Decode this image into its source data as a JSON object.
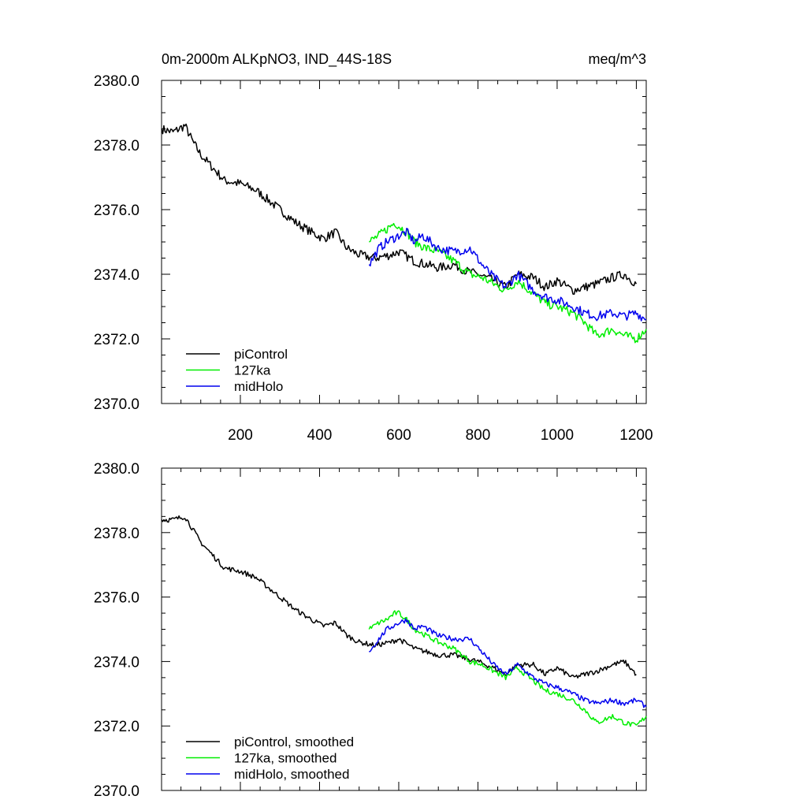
{
  "chart_data": [
    {
      "type": "line",
      "panel": "top",
      "title": "0m-2000m ALKpNO3, IND_44S-18S",
      "units": "meq/m^3",
      "xlim": [
        1,
        1225
      ],
      "ylim": [
        2370.0,
        2380.0
      ],
      "x_ticks": [
        200,
        400,
        600,
        800,
        1000,
        1200
      ],
      "y_ticks": [
        2370.0,
        2372.0,
        2374.0,
        2376.0,
        2378.0,
        2380.0
      ],
      "y_tick_labels": [
        "2370.0",
        "2372.0",
        "2374.0",
        "2376.0",
        "2378.0",
        "2380.0"
      ],
      "x_tick_labels": [
        "200",
        "400",
        "600",
        "800",
        "1000",
        "1200"
      ],
      "legend": [
        "piControl",
        "127ka",
        "midHolo"
      ],
      "series": [
        {
          "name": "piControl",
          "color": "#000000",
          "x": [
            1,
            30,
            60,
            80,
            100,
            130,
            160,
            200,
            240,
            270,
            300,
            340,
            380,
            410,
            440,
            470,
            500,
            540,
            580,
            600,
            640,
            670,
            700,
            740,
            770,
            800,
            840,
            870,
            900,
            940,
            970,
            1000,
            1040,
            1070,
            1100,
            1140,
            1170,
            1200
          ],
          "y": [
            2378.5,
            2378.4,
            2378.6,
            2378.1,
            2377.7,
            2377.3,
            2376.9,
            2376.8,
            2376.6,
            2376.3,
            2376.0,
            2375.6,
            2375.3,
            2375.1,
            2375.3,
            2374.8,
            2374.6,
            2374.5,
            2374.6,
            2374.7,
            2374.4,
            2374.3,
            2374.2,
            2374.3,
            2374.1,
            2374.0,
            2373.8,
            2373.6,
            2374.0,
            2373.9,
            2373.6,
            2373.8,
            2373.5,
            2373.6,
            2373.7,
            2373.9,
            2374.0,
            2373.7
          ]
        },
        {
          "name": "127ka",
          "color": "#00ee00",
          "x": [
            525,
            550,
            570,
            590,
            600,
            620,
            640,
            670,
            700,
            740,
            780,
            810,
            840,
            870,
            900,
            940,
            970,
            1000,
            1040,
            1070,
            1100,
            1140,
            1170,
            1200,
            1225
          ],
          "y": [
            2375.0,
            2375.2,
            2375.4,
            2375.6,
            2375.5,
            2375.3,
            2375.0,
            2374.8,
            2374.7,
            2374.4,
            2374.0,
            2373.9,
            2373.7,
            2373.5,
            2373.8,
            2373.4,
            2373.1,
            2373.0,
            2372.8,
            2372.5,
            2372.1,
            2372.3,
            2372.1,
            2372.0,
            2372.3
          ]
        },
        {
          "name": "midHolo",
          "color": "#0000ee",
          "x": [
            525,
            550,
            570,
            600,
            620,
            640,
            660,
            700,
            740,
            780,
            810,
            840,
            870,
            900,
            940,
            970,
            1000,
            1040,
            1070,
            1100,
            1140,
            1170,
            1200,
            1225
          ],
          "y": [
            2374.3,
            2374.8,
            2375.0,
            2375.2,
            2375.3,
            2375.0,
            2375.2,
            2374.8,
            2374.7,
            2374.8,
            2374.3,
            2373.9,
            2373.6,
            2374.0,
            2373.5,
            2373.3,
            2373.2,
            2373.0,
            2372.8,
            2372.7,
            2372.8,
            2372.7,
            2372.8,
            2372.6
          ]
        }
      ]
    },
    {
      "type": "line",
      "panel": "bottom",
      "xlim": [
        1,
        1225
      ],
      "ylim": [
        2370.0,
        2380.0
      ],
      "x_ticks": [
        200,
        400,
        600,
        800,
        1000,
        1200
      ],
      "y_ticks": [
        2370.0,
        2372.0,
        2374.0,
        2376.0,
        2378.0,
        2380.0
      ],
      "y_tick_labels": [
        "2370.0",
        "2372.0",
        "2374.0",
        "2376.0",
        "2378.0",
        "2380.0"
      ],
      "legend": [
        "piControl, smoothed",
        "127ka, smoothed",
        "midHolo, smoothed"
      ],
      "series": [
        {
          "name": "piControl, smoothed",
          "color": "#000000",
          "x": [
            1,
            30,
            60,
            80,
            100,
            130,
            160,
            200,
            240,
            270,
            300,
            340,
            380,
            410,
            440,
            470,
            500,
            540,
            580,
            600,
            640,
            670,
            700,
            740,
            770,
            800,
            840,
            870,
            900,
            940,
            970,
            1000,
            1040,
            1070,
            1100,
            1140,
            1170,
            1200
          ],
          "y": [
            2378.4,
            2378.4,
            2378.5,
            2378.1,
            2377.7,
            2377.3,
            2376.9,
            2376.8,
            2376.6,
            2376.3,
            2376.0,
            2375.6,
            2375.3,
            2375.1,
            2375.2,
            2374.8,
            2374.6,
            2374.5,
            2374.6,
            2374.7,
            2374.4,
            2374.3,
            2374.2,
            2374.2,
            2374.1,
            2374.0,
            2373.8,
            2373.6,
            2373.9,
            2373.9,
            2373.6,
            2373.8,
            2373.5,
            2373.6,
            2373.7,
            2373.9,
            2374.0,
            2373.6
          ]
        },
        {
          "name": "127ka, smoothed",
          "color": "#00ee00",
          "x": [
            525,
            550,
            570,
            590,
            600,
            620,
            640,
            670,
            700,
            740,
            780,
            810,
            840,
            870,
            900,
            940,
            970,
            1000,
            1040,
            1070,
            1100,
            1140,
            1170,
            1200,
            1225
          ],
          "y": [
            2375.0,
            2375.2,
            2375.3,
            2375.5,
            2375.5,
            2375.3,
            2375.0,
            2374.8,
            2374.6,
            2374.4,
            2374.0,
            2373.9,
            2373.7,
            2373.5,
            2373.8,
            2373.4,
            2373.1,
            2373.0,
            2372.8,
            2372.5,
            2372.1,
            2372.3,
            2372.1,
            2372.0,
            2372.3
          ]
        },
        {
          "name": "midHolo, smoothed",
          "color": "#0000ee",
          "x": [
            525,
            550,
            570,
            600,
            620,
            640,
            660,
            700,
            740,
            780,
            810,
            840,
            870,
            900,
            940,
            970,
            1000,
            1040,
            1070,
            1100,
            1140,
            1170,
            1200,
            1225
          ],
          "y": [
            2374.3,
            2374.7,
            2375.0,
            2375.2,
            2375.3,
            2375.0,
            2375.1,
            2374.8,
            2374.7,
            2374.7,
            2374.3,
            2373.9,
            2373.6,
            2373.9,
            2373.5,
            2373.3,
            2373.2,
            2373.0,
            2372.8,
            2372.7,
            2372.8,
            2372.7,
            2372.8,
            2372.6
          ]
        }
      ]
    }
  ]
}
